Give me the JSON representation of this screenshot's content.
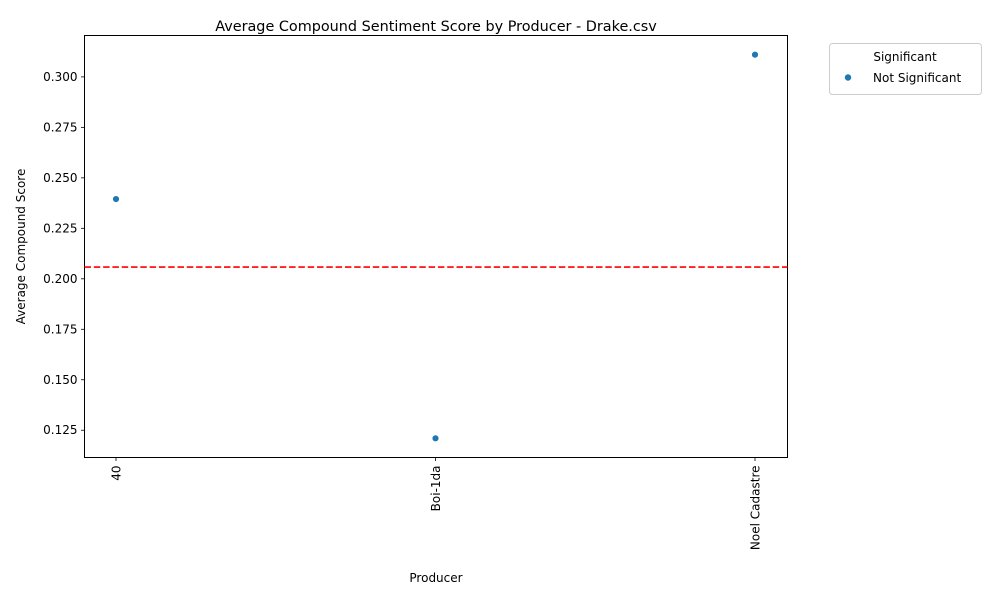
{
  "chart_data": {
    "type": "scatter",
    "title": "Average Compound Sentiment Score by Producer - Drake.csv",
    "xlabel": "Producer",
    "ylabel": "Average Compound Score",
    "categories": [
      "40",
      "Boi-1da",
      "Noel Cadastre"
    ],
    "series": [
      {
        "name": "Not Significant",
        "color": "#1f77b4",
        "values": [
          0.2395,
          0.121,
          0.311
        ]
      }
    ],
    "reference_line": {
      "y": 0.2058,
      "color": "#ff0000",
      "style": "dashed"
    },
    "ylim": [
      0.1115,
      0.3205
    ],
    "yticks": [
      0.125,
      0.15,
      0.175,
      0.2,
      0.225,
      0.25,
      0.275,
      0.3
    ],
    "ytick_labels": [
      "0.125",
      "0.150",
      "0.175",
      "0.200",
      "0.225",
      "0.250",
      "0.275",
      "0.300"
    ],
    "xtick_rotation": "vertical",
    "legend": {
      "title": "Significant",
      "placement": "outside-top-right"
    },
    "grid": false
  }
}
